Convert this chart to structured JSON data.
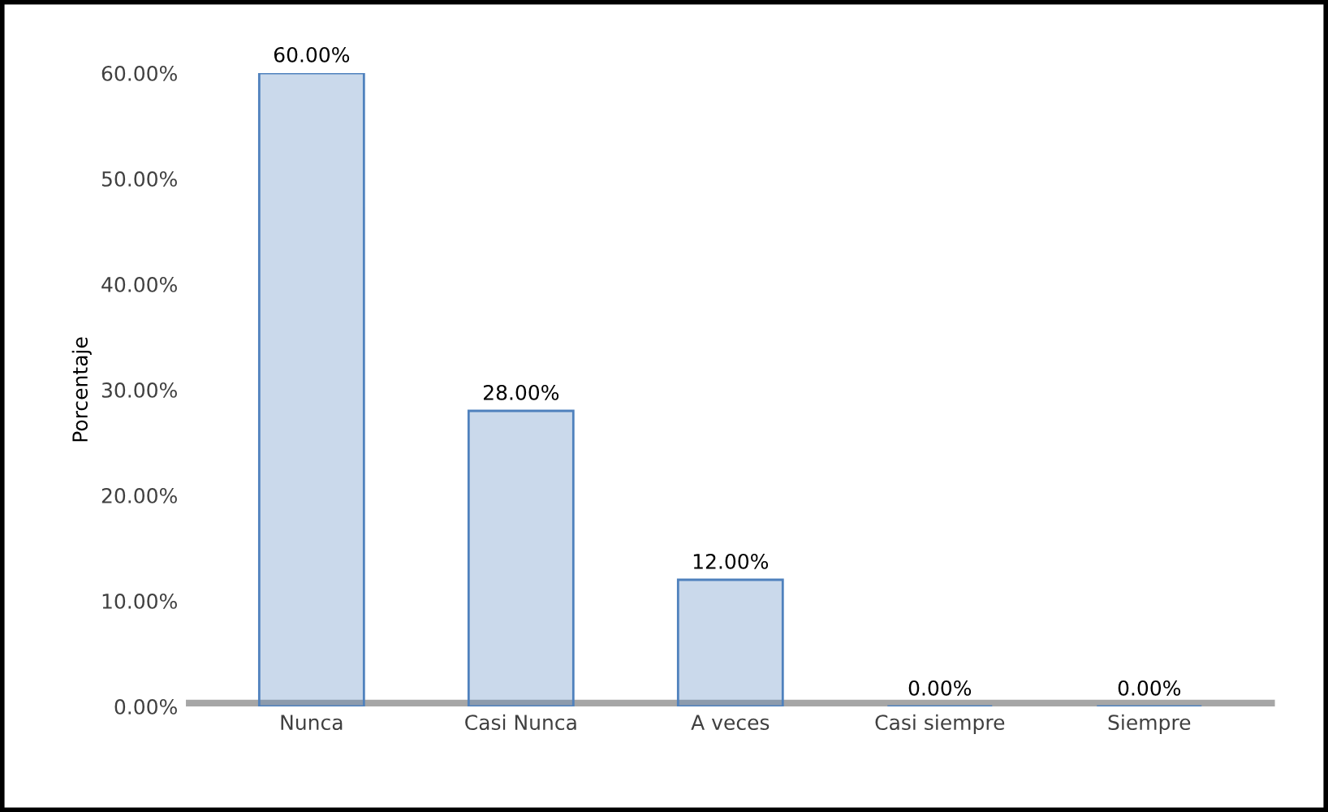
{
  "chart_data": {
    "type": "bar",
    "ylabel": "Porcentaje",
    "categories": [
      "Nunca",
      "Casi Nunca",
      "A veces",
      "Casi siempre",
      "Siempre"
    ],
    "values": [
      60,
      28,
      12,
      0,
      0
    ],
    "value_labels": [
      "60.00%",
      "28.00%",
      "12.00%",
      "0.00%",
      "0.00%"
    ],
    "color": "#4f81bd",
    "ylim": [
      0,
      60
    ],
    "yticks": [
      {
        "value": 0,
        "label": "0.00%"
      },
      {
        "value": 10,
        "label": "10.00%"
      },
      {
        "value": 20,
        "label": "20.00%"
      },
      {
        "value": 30,
        "label": "30.00%"
      },
      {
        "value": 40,
        "label": "40.00%"
      },
      {
        "value": 50,
        "label": "50.00%"
      },
      {
        "value": 60,
        "label": "60.00%"
      }
    ],
    "grid": false,
    "legend": false
  }
}
